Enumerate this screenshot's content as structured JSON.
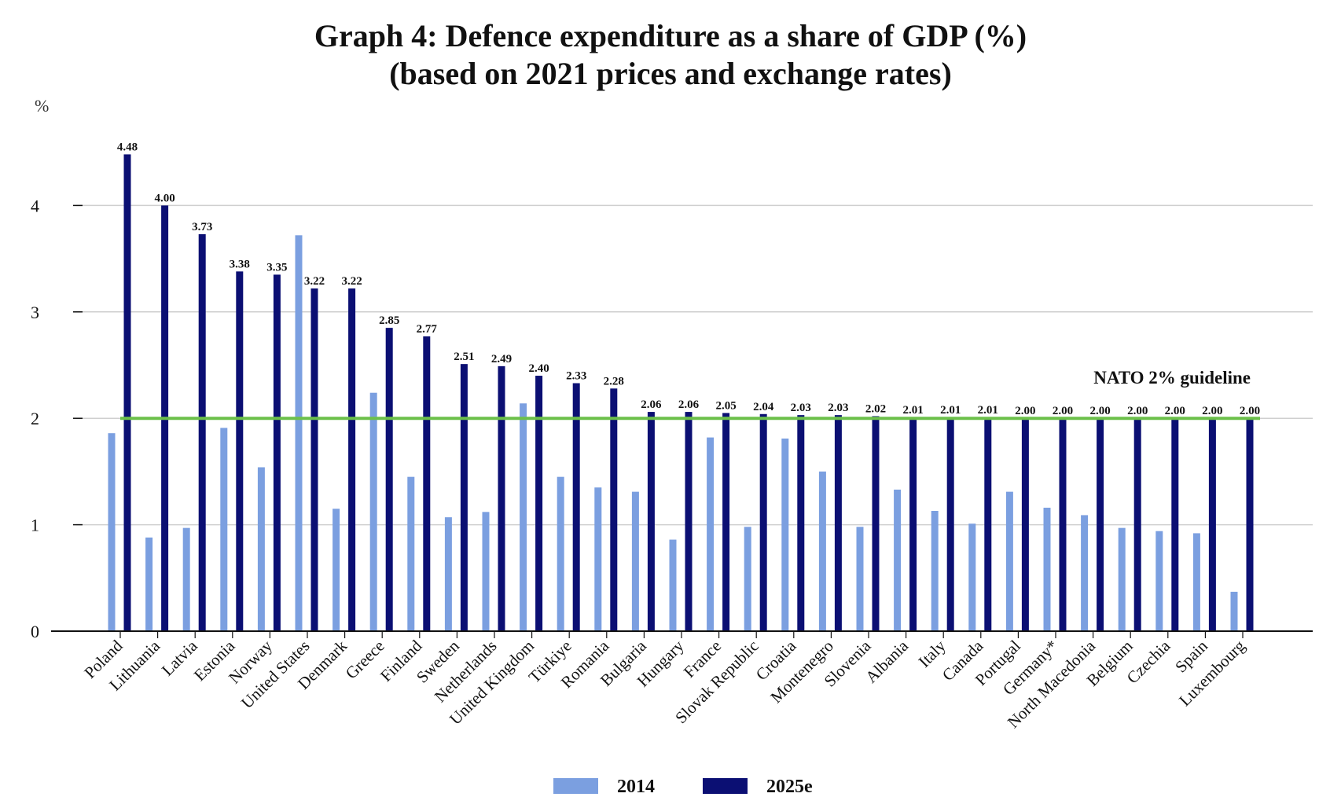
{
  "chart_data": {
    "type": "bar",
    "title": "Graph 4: Defence expenditure as a share of GDP (%)",
    "subtitle": "(based on 2021 prices and exchange rates)",
    "ylabel": "%",
    "ylim": [
      0,
      4.6
    ],
    "yticks": [
      0,
      1,
      2,
      3,
      4
    ],
    "grid": true,
    "legend_position": "bottom",
    "reference_line": {
      "value": 2,
      "label": "NATO 2% guideline",
      "color": "#6cc04a"
    },
    "categories": [
      "Poland",
      "Lithuania",
      "Latvia",
      "Estonia",
      "Norway",
      "United States",
      "Denmark",
      "Greece",
      "Finland",
      "Sweden",
      "Netherlands",
      "United Kingdom",
      "Türkiye",
      "Romania",
      "Bulgaria",
      "Hungary",
      "France",
      "Slovak Republic",
      "Croatia",
      "Montenegro",
      "Slovenia",
      "Albania",
      "Italy",
      "Canada",
      "Portugal",
      "Germany*",
      "North Macedonia",
      "Belgium",
      "Czechia",
      "Spain",
      "Luxembourg"
    ],
    "series": [
      {
        "name": "2014",
        "color": "#7b9fe0",
        "show_labels": false,
        "values": [
          1.86,
          0.88,
          0.97,
          1.91,
          1.54,
          3.72,
          1.15,
          2.24,
          1.45,
          1.07,
          1.12,
          2.14,
          1.45,
          1.35,
          1.31,
          0.86,
          1.82,
          0.98,
          1.81,
          1.5,
          0.98,
          1.33,
          1.13,
          1.01,
          1.31,
          1.16,
          1.09,
          0.97,
          0.94,
          0.92,
          0.37
        ]
      },
      {
        "name": "2025e",
        "color": "#0b0f73",
        "show_labels": true,
        "values": [
          4.48,
          4.0,
          3.73,
          3.38,
          3.35,
          3.22,
          3.22,
          2.85,
          2.77,
          2.51,
          2.49,
          2.4,
          2.33,
          2.28,
          2.06,
          2.06,
          2.05,
          2.04,
          2.03,
          2.03,
          2.02,
          2.01,
          2.01,
          2.01,
          2.0,
          2.0,
          2.0,
          2.0,
          2.0,
          2.0,
          2.0
        ]
      }
    ]
  }
}
